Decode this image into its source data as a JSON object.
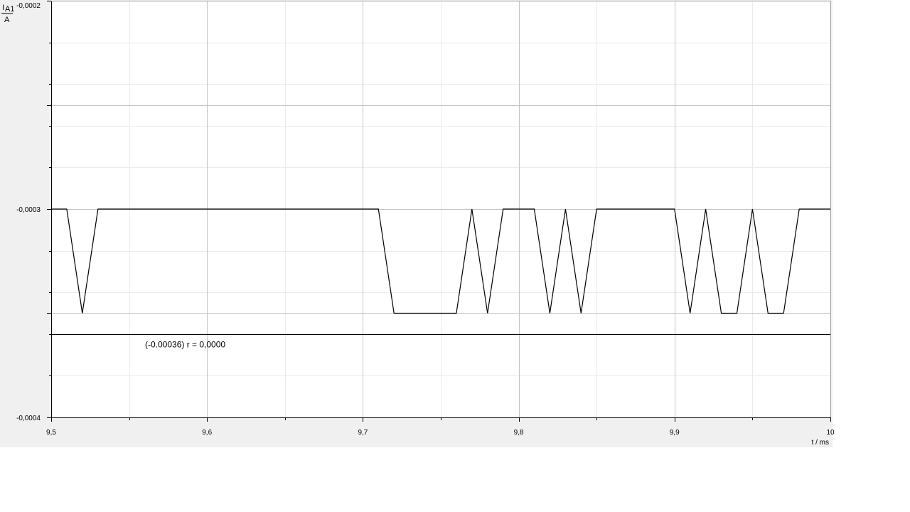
{
  "chart_data": {
    "type": "line",
    "xlabel": "t / ms",
    "ylabel": {
      "symbol": "I",
      "subscript": "A1",
      "unit": "A"
    },
    "xlim": [
      9.5,
      10.0
    ],
    "ylim": [
      -0.0004,
      -0.0002
    ],
    "x_major_ticks": [
      9.5,
      9.6,
      9.7,
      9.8,
      9.9,
      10.0
    ],
    "x_tick_labels": [
      "9,5",
      "9,6",
      "9,7",
      "9,8",
      "9,9",
      "10"
    ],
    "x_minor_step": 0.05,
    "y_major_ticks": [
      -0.0002,
      -0.0003,
      -0.0004
    ],
    "y_tick_labels": [
      "-0,0002",
      "-0,0003",
      "-0,0004"
    ],
    "y_minor_step": 2e-05,
    "grid": true,
    "series": [
      {
        "x": [
          9.5,
          9.51,
          9.52,
          9.53,
          9.71,
          9.72,
          9.76,
          9.77,
          9.78,
          9.79,
          9.81,
          9.82,
          9.83,
          9.84,
          9.85,
          9.9,
          9.91,
          9.92,
          9.93,
          9.94,
          9.95,
          9.96,
          9.97,
          9.98,
          10.0
        ],
        "y": [
          -0.0003,
          -0.0003,
          -0.00035,
          -0.0003,
          -0.0003,
          -0.00035,
          -0.00035,
          -0.0003,
          -0.00035,
          -0.0003,
          -0.0003,
          -0.00035,
          -0.0003,
          -0.00035,
          -0.0003,
          -0.0003,
          -0.00035,
          -0.0003,
          -0.00035,
          -0.00035,
          -0.0003,
          -0.00035,
          -0.00035,
          -0.0003,
          -0.0003
        ],
        "color": "#000000"
      }
    ],
    "reference_line": {
      "y": -0.00036,
      "label": "(-0.00036)    r = 0,0000"
    }
  }
}
